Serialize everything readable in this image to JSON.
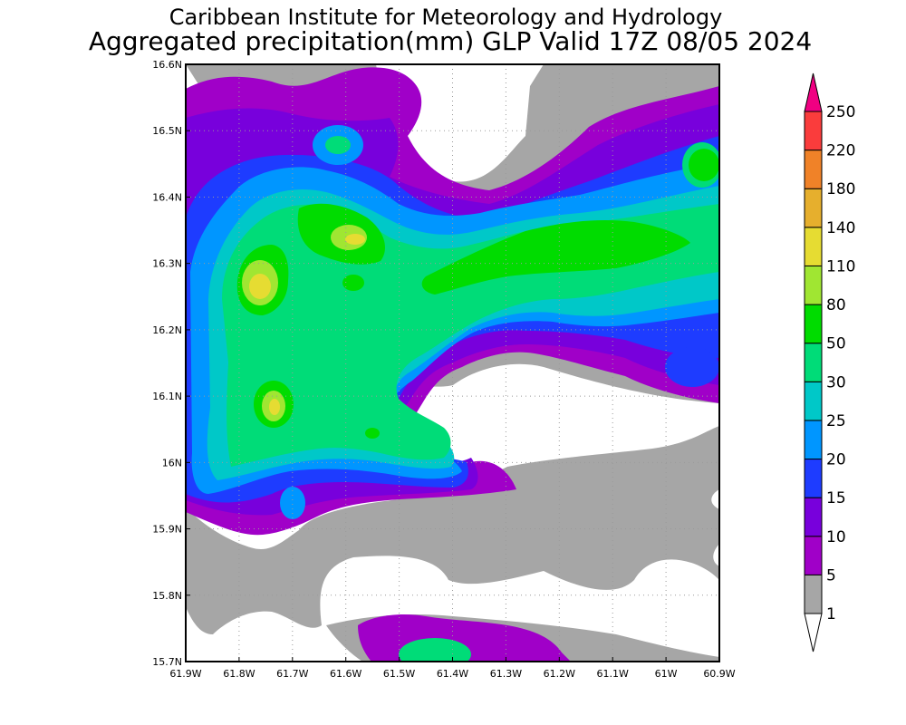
{
  "header": {
    "title": "Caribbean Institute for Meteorology and Hydrology",
    "subtitle": "Aggregated precipitation(mm) GLP Valid 17Z 08/05 2024"
  },
  "map": {
    "lon_range": [
      -61.9,
      -60.9
    ],
    "lat_range": [
      15.7,
      16.6
    ],
    "x_ticks": [
      "61.9W",
      "61.8W",
      "61.7W",
      "61.6W",
      "61.5W",
      "61.4W",
      "61.3W",
      "61.2W",
      "61.1W",
      "61W",
      "60.9W"
    ],
    "y_ticks": [
      "15.7N",
      "15.8N",
      "15.9N",
      "16N",
      "16.1N",
      "16.2N",
      "16.3N",
      "16.4N",
      "16.5N",
      "16.6N"
    ],
    "grid": "dotted",
    "variable": "precipitation(mm)"
  },
  "colorbar": {
    "levels": [
      "1",
      "5",
      "10",
      "15",
      "20",
      "25",
      "30",
      "50",
      "80",
      "110",
      "140",
      "180",
      "220",
      "250"
    ],
    "colors": [
      "#a6a6a6",
      "#a000c8",
      "#7800dc",
      "#1e3cff",
      "#0096ff",
      "#00c8c8",
      "#00dc78",
      "#00dc00",
      "#a0e632",
      "#e6dc32",
      "#e6af2d",
      "#f08228",
      "#fa3c3c",
      "#f00082"
    ]
  }
}
